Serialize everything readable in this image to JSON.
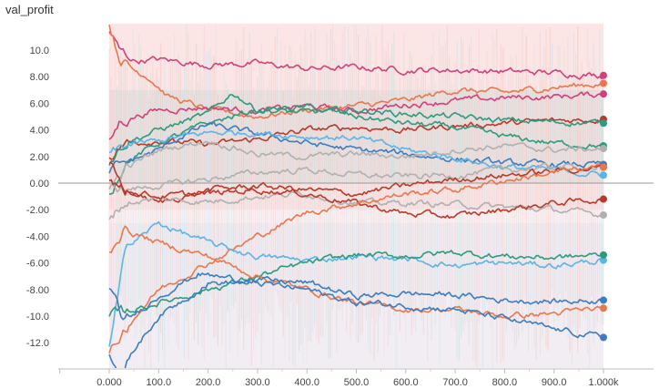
{
  "chart_data": {
    "type": "line",
    "title": "val_profit",
    "xlim": [
      -110,
      1000
    ],
    "ylim": [
      -14,
      12
    ],
    "x_tick_labels": [
      "0.000",
      "100.0",
      "200.0",
      "300.0",
      "400.0",
      "500.0",
      "600.0",
      "700.0",
      "800.0",
      "900.0",
      "1.000k"
    ],
    "x_tick_values": [
      0,
      100,
      200,
      300,
      400,
      500,
      600,
      700,
      800,
      900,
      1000
    ],
    "y_tick_labels": [
      "10.0",
      "8.00",
      "6.00",
      "4.00",
      "2.00",
      "0.00",
      "-2.00",
      "-4.00",
      "-6.00",
      "-8.00",
      "-10.0",
      "-12.0"
    ],
    "y_tick_values": [
      10,
      8,
      6,
      4,
      2,
      0,
      -2,
      -4,
      -6,
      -8,
      -10,
      -12
    ],
    "grid": false,
    "zero_line": true,
    "series": [
      {
        "color": "#d0407a",
        "points": [
          [
            0,
            11.5
          ],
          [
            20,
            10
          ],
          [
            50,
            9.2
          ],
          [
            100,
            9.3
          ],
          [
            200,
            8.9
          ],
          [
            300,
            9.0
          ],
          [
            400,
            8.6
          ],
          [
            500,
            8.7
          ],
          [
            600,
            8.5
          ],
          [
            700,
            8.5
          ],
          [
            800,
            8.4
          ],
          [
            900,
            8.3
          ],
          [
            1000,
            8.1
          ]
        ]
      },
      {
        "color": "#e8774d",
        "points": [
          [
            0,
            12
          ],
          [
            20,
            9.5
          ],
          [
            50,
            8.5
          ],
          [
            80,
            8.0
          ],
          [
            120,
            6.5
          ],
          [
            200,
            5.5
          ],
          [
            300,
            5.0
          ],
          [
            400,
            5.5
          ],
          [
            500,
            5.8
          ],
          [
            600,
            6.2
          ],
          [
            700,
            7.0
          ],
          [
            800,
            6.8
          ],
          [
            900,
            7.2
          ],
          [
            1000,
            7.5
          ]
        ]
      },
      {
        "color": "#d0407a",
        "points": [
          [
            0,
            3.0
          ],
          [
            20,
            4.5
          ],
          [
            50,
            5.0
          ],
          [
            100,
            5.5
          ],
          [
            200,
            5.7
          ],
          [
            300,
            5.4
          ],
          [
            400,
            5.8
          ],
          [
            500,
            5.4
          ],
          [
            600,
            5.9
          ],
          [
            700,
            6.2
          ],
          [
            800,
            6.4
          ],
          [
            900,
            6.5
          ],
          [
            1000,
            6.7
          ]
        ]
      },
      {
        "color": "#b83a2a",
        "points": [
          [
            0,
            2.0
          ],
          [
            30,
            3.0
          ],
          [
            100,
            3.2
          ],
          [
            200,
            2.9
          ],
          [
            300,
            3.3
          ],
          [
            400,
            4.0
          ],
          [
            500,
            4.2
          ],
          [
            600,
            4.0
          ],
          [
            700,
            4.3
          ],
          [
            800,
            4.5
          ],
          [
            900,
            4.7
          ],
          [
            1000,
            4.8
          ]
        ]
      },
      {
        "color": "#2e9a7e",
        "points": [
          [
            0,
            1.5
          ],
          [
            30,
            3.0
          ],
          [
            100,
            4.0
          ],
          [
            200,
            5.2
          ],
          [
            250,
            6.8
          ],
          [
            300,
            5.5
          ],
          [
            400,
            5.3
          ],
          [
            500,
            5.5
          ],
          [
            600,
            5.2
          ],
          [
            700,
            5.0
          ],
          [
            800,
            4.7
          ],
          [
            900,
            4.6
          ],
          [
            1000,
            4.5
          ]
        ]
      },
      {
        "color": "#2e9a7e",
        "points": [
          [
            0,
            -1.0
          ],
          [
            30,
            1.5
          ],
          [
            100,
            3.0
          ],
          [
            200,
            4.5
          ],
          [
            300,
            5.5
          ],
          [
            400,
            5.7
          ],
          [
            500,
            5.0
          ],
          [
            600,
            4.5
          ],
          [
            700,
            4.2
          ],
          [
            800,
            3.5
          ],
          [
            900,
            3.0
          ],
          [
            1000,
            2.8
          ]
        ]
      },
      {
        "color": "#3b7dbf",
        "points": [
          [
            0,
            1.0
          ],
          [
            30,
            1.5
          ],
          [
            100,
            2.5
          ],
          [
            150,
            3.6
          ],
          [
            200,
            4.4
          ],
          [
            300,
            3.7
          ],
          [
            400,
            3.0
          ],
          [
            500,
            2.5
          ],
          [
            600,
            2.2
          ],
          [
            700,
            1.8
          ],
          [
            800,
            1.5
          ],
          [
            900,
            1.4
          ],
          [
            1000,
            1.4
          ]
        ]
      },
      {
        "color": "#5bb4e6",
        "points": [
          [
            0,
            2.0
          ],
          [
            30,
            2.8
          ],
          [
            100,
            3.2
          ],
          [
            200,
            3.8
          ],
          [
            300,
            3.8
          ],
          [
            400,
            3.5
          ],
          [
            500,
            3.4
          ],
          [
            600,
            2.5
          ],
          [
            700,
            1.9
          ],
          [
            800,
            1.2
          ],
          [
            900,
            1.0
          ],
          [
            1000,
            0.6
          ]
        ]
      },
      {
        "color": "#b0b0b0",
        "points": [
          [
            0,
            -0.5
          ],
          [
            30,
            1.0
          ],
          [
            100,
            2.5
          ],
          [
            200,
            3.2
          ],
          [
            300,
            2.2
          ],
          [
            400,
            2.0
          ],
          [
            500,
            2.2
          ],
          [
            600,
            2.0
          ],
          [
            700,
            2.5
          ],
          [
            800,
            2.8
          ],
          [
            900,
            2.5
          ],
          [
            1000,
            2.6
          ]
        ]
      },
      {
        "color": "#b0b0b0",
        "points": [
          [
            0,
            0.0
          ],
          [
            30,
            -0.5
          ],
          [
            100,
            -0.2
          ],
          [
            200,
            0.3
          ],
          [
            300,
            0.8
          ],
          [
            400,
            1.0
          ],
          [
            500,
            0.6
          ],
          [
            600,
            0.5
          ],
          [
            700,
            0.6
          ],
          [
            800,
            1.0
          ],
          [
            900,
            1.2
          ],
          [
            1000,
            1.2
          ]
        ]
      },
      {
        "color": "#b83a2a",
        "points": [
          [
            0,
            1.5
          ],
          [
            30,
            -0.5
          ],
          [
            100,
            -1.5
          ],
          [
            200,
            -0.5
          ],
          [
            300,
            -0.2
          ],
          [
            400,
            -0.5
          ],
          [
            500,
            -0.8
          ],
          [
            600,
            -0.2
          ],
          [
            700,
            0.3
          ],
          [
            800,
            0.6
          ],
          [
            900,
            0.9
          ],
          [
            1000,
            1.2
          ]
        ]
      },
      {
        "color": "#b0b0b0",
        "points": [
          [
            0,
            -2.5
          ],
          [
            30,
            -1.5
          ],
          [
            100,
            -1.2
          ],
          [
            200,
            -1.4
          ],
          [
            300,
            -1.0
          ],
          [
            400,
            -0.8
          ],
          [
            500,
            -1.5
          ],
          [
            600,
            -1.5
          ],
          [
            700,
            -1.6
          ],
          [
            800,
            -1.8
          ],
          [
            900,
            -2.0
          ],
          [
            1000,
            -2.4
          ]
        ]
      },
      {
        "color": "#b83a2a",
        "points": [
          [
            0,
            0.5
          ],
          [
            30,
            -0.5
          ],
          [
            100,
            -1.0
          ],
          [
            200,
            -0.8
          ],
          [
            300,
            -0.5
          ],
          [
            400,
            -0.8
          ],
          [
            500,
            -1.5
          ],
          [
            600,
            -2.3
          ],
          [
            700,
            -2.5
          ],
          [
            800,
            -2.0
          ],
          [
            900,
            -1.5
          ],
          [
            1000,
            -1.2
          ]
        ]
      },
      {
        "color": "#e8774d",
        "points": [
          [
            0,
            -13
          ],
          [
            30,
            -11
          ],
          [
            100,
            -8
          ],
          [
            200,
            -6
          ],
          [
            300,
            -4
          ],
          [
            400,
            -2.2
          ],
          [
            500,
            -1.5
          ],
          [
            600,
            -0.8
          ],
          [
            700,
            -0.5
          ],
          [
            800,
            0.2
          ],
          [
            900,
            0.8
          ],
          [
            1000,
            1.2
          ]
        ]
      },
      {
        "color": "#5bb4e6",
        "points": [
          [
            0,
            -12
          ],
          [
            30,
            -5
          ],
          [
            100,
            -3
          ],
          [
            200,
            -4.5
          ],
          [
            300,
            -5.5
          ],
          [
            400,
            -5.8
          ],
          [
            500,
            -5.5
          ],
          [
            600,
            -5.7
          ],
          [
            700,
            -6.2
          ],
          [
            800,
            -6.0
          ],
          [
            900,
            -6.2
          ],
          [
            1000,
            -5.8
          ]
        ]
      },
      {
        "color": "#2e9a7e",
        "points": [
          [
            0,
            -10
          ],
          [
            30,
            -9.7
          ],
          [
            100,
            -9.0
          ],
          [
            200,
            -8.0
          ],
          [
            300,
            -7.0
          ],
          [
            400,
            -6.0
          ],
          [
            500,
            -5.4
          ],
          [
            600,
            -5.5
          ],
          [
            700,
            -5.2
          ],
          [
            800,
            -5.5
          ],
          [
            900,
            -5.6
          ],
          [
            1000,
            -5.4
          ]
        ]
      },
      {
        "color": "#e8774d",
        "points": [
          [
            0,
            -5
          ],
          [
            30,
            -3.5
          ],
          [
            100,
            -4.5
          ],
          [
            200,
            -5.5
          ],
          [
            300,
            -7.0
          ],
          [
            400,
            -8.0
          ],
          [
            500,
            -9.0
          ],
          [
            600,
            -9.5
          ],
          [
            700,
            -9.5
          ],
          [
            800,
            -10.0
          ],
          [
            900,
            -9.8
          ],
          [
            1000,
            -9.4
          ]
        ]
      },
      {
        "color": "#3b7dbf",
        "points": [
          [
            0,
            -8
          ],
          [
            30,
            -10.5
          ],
          [
            100,
            -8.5
          ],
          [
            180,
            -6.8
          ],
          [
            250,
            -7.2
          ],
          [
            300,
            -7.3
          ],
          [
            400,
            -7.5
          ],
          [
            500,
            -8.5
          ],
          [
            600,
            -8.3
          ],
          [
            700,
            -8.4
          ],
          [
            800,
            -8.8
          ],
          [
            900,
            -8.9
          ],
          [
            1000,
            -8.8
          ]
        ]
      },
      {
        "color": "#3b7dbf",
        "points": [
          [
            0,
            -13
          ],
          [
            30,
            -14
          ],
          [
            60,
            -12
          ],
          [
            100,
            -10
          ],
          [
            200,
            -7.5
          ],
          [
            300,
            -7.5
          ],
          [
            400,
            -8.0
          ],
          [
            500,
            -9.0
          ],
          [
            600,
            -9.2
          ],
          [
            700,
            -9.5
          ],
          [
            800,
            -10.2
          ],
          [
            900,
            -11.0
          ],
          [
            1000,
            -11.6
          ]
        ]
      }
    ]
  }
}
